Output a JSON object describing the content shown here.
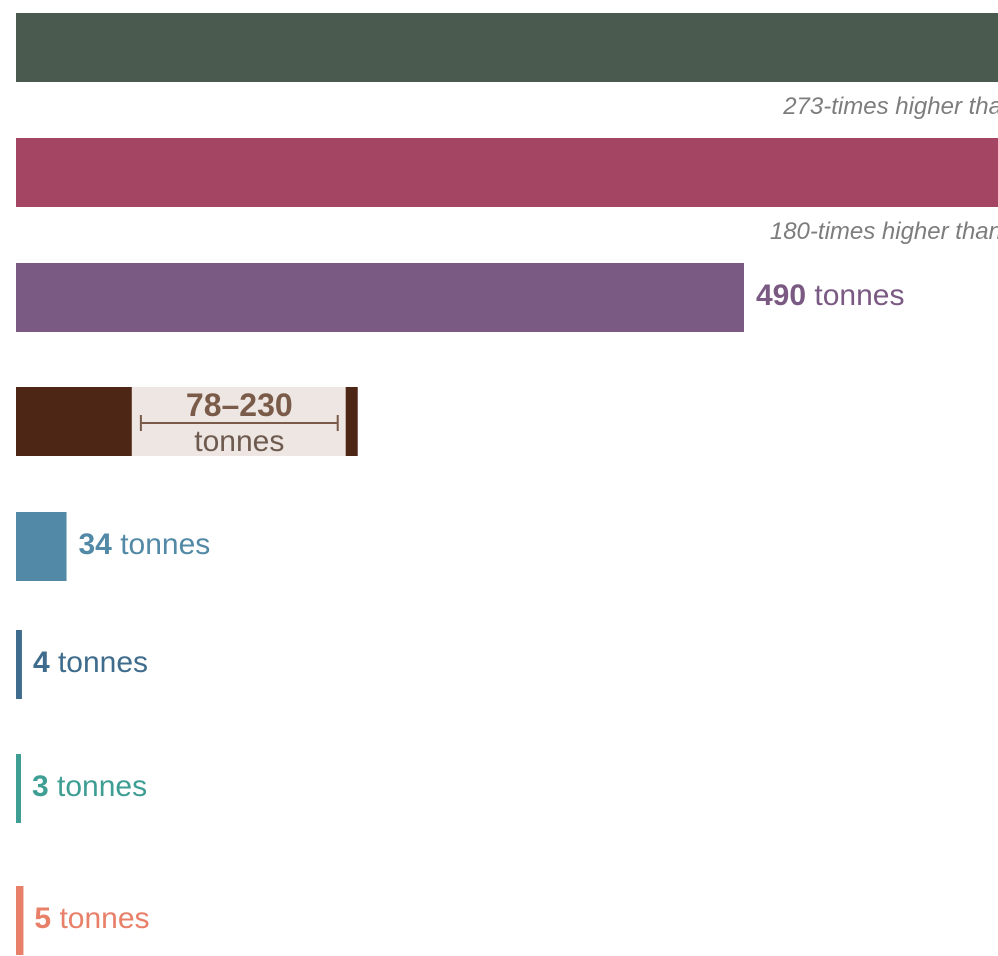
{
  "chart_data": {
    "type": "bar",
    "orientation": "horizontal",
    "unit": "tonnes",
    "x_axis_visible": false,
    "grid": false,
    "bars": [
      {
        "value": null,
        "color": "#4a5a4f",
        "value_label": "",
        "unit_label": "",
        "note": "273-times higher tha"
      },
      {
        "value": null,
        "color": "#a34563",
        "value_label": "",
        "unit_label": "",
        "note": "180-times higher than"
      },
      {
        "value": 490,
        "color": "#7a5a82",
        "value_label": "490",
        "unit_label": " tonnes",
        "note": ""
      },
      {
        "value_range": [
          78,
          230
        ],
        "color": "#4e2616",
        "range_bg": "#ede6e2",
        "value_label": "78–230",
        "unit_label": "tonnes",
        "note": ""
      },
      {
        "value": 34,
        "color": "#5289a6",
        "value_label": "34",
        "unit_label": " tonnes",
        "note": ""
      },
      {
        "value": 4,
        "color": "#3f6c8c",
        "value_label": "4",
        "unit_label": " tonnes",
        "note": ""
      },
      {
        "value": 3,
        "color": "#3e9e94",
        "value_label": "3",
        "unit_label": " tonnes",
        "note": ""
      },
      {
        "value": 5,
        "color": "#e87f69",
        "value_label": "5",
        "unit_label": " tonnes",
        "note": ""
      }
    ]
  }
}
